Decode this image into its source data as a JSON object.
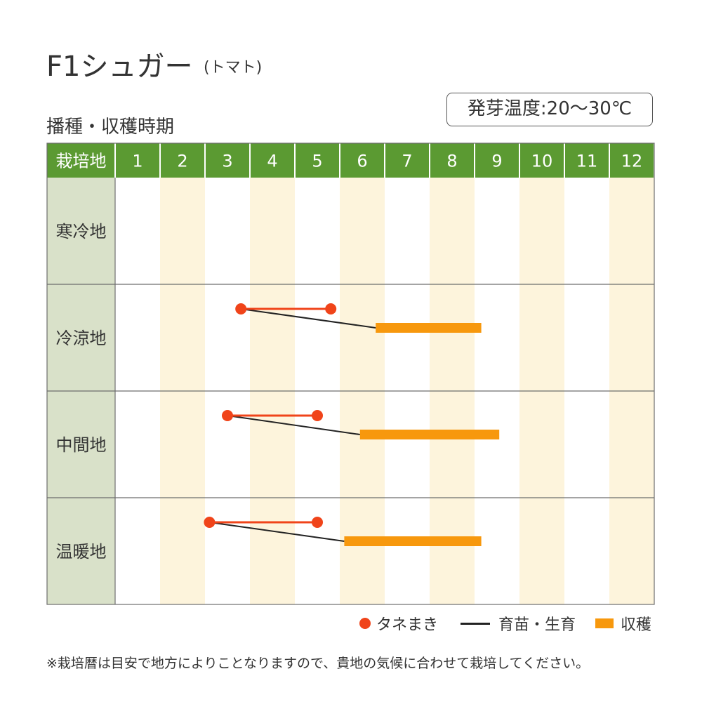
{
  "header": {
    "title": "F1シュガー",
    "title_sub": "(トマト)",
    "subtitle": "播種・収穫時期",
    "temperature": "発芽温度:20〜30℃"
  },
  "chart_data": {
    "type": "table",
    "corner_label": "栽培地",
    "months": [
      "1",
      "2",
      "3",
      "4",
      "5",
      "6",
      "7",
      "8",
      "9",
      "10",
      "11",
      "12"
    ],
    "regions": [
      {
        "name": "寒冷地",
        "sowing": null,
        "harvest": null
      },
      {
        "name": "冷涼地",
        "sowing": [
          3.8,
          5.8
        ],
        "harvest": [
          6.8,
          9.15
        ]
      },
      {
        "name": "中間地",
        "sowing": [
          3.5,
          5.5
        ],
        "harvest": [
          6.45,
          9.55
        ]
      },
      {
        "name": "温暖地",
        "sowing": [
          3.1,
          5.5
        ],
        "harvest": [
          6.1,
          9.15
        ]
      }
    ],
    "colors": {
      "header_green": "#5b9a32",
      "region_column": "#d9e1c9",
      "stripe": "#fdf4dc",
      "sowing": "#f0441a",
      "raising": "#222222",
      "harvest": "#f7980d"
    }
  },
  "legend": {
    "sowing": "タネまき",
    "raising": "育苗・生育",
    "harvest": "収穫"
  },
  "footnote": "※栽培暦は目安で地方によりことなりますので、貴地の気候に合わせて栽培してください。"
}
